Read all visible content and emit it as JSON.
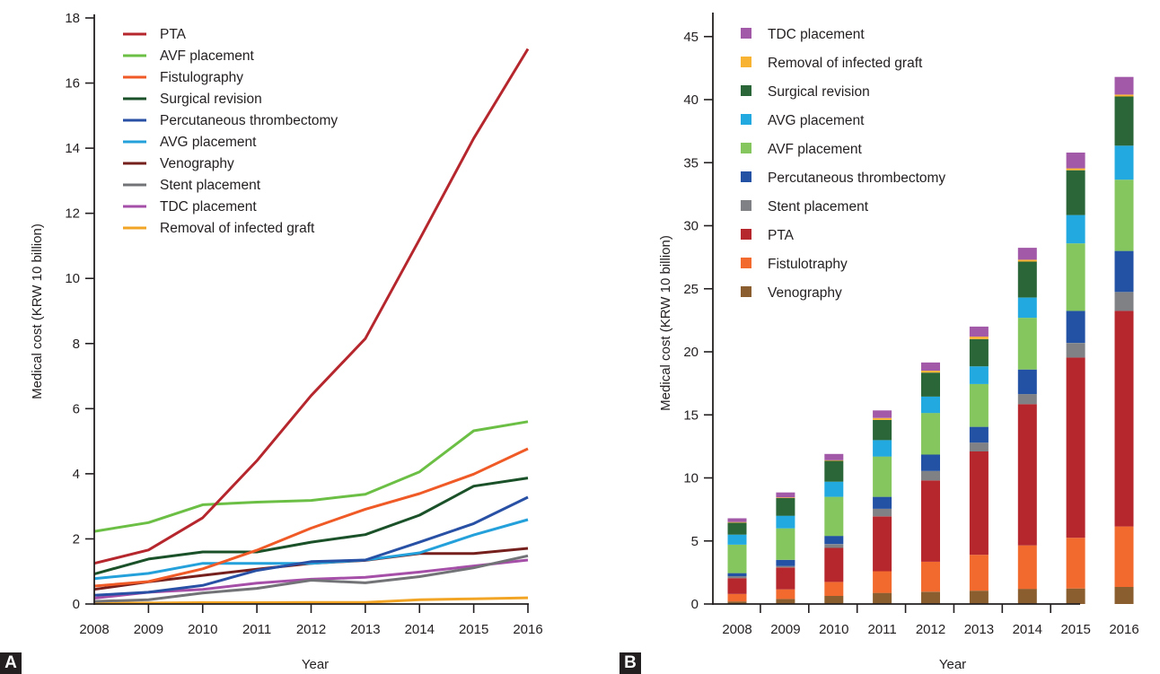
{
  "panels": {
    "a_label": "A",
    "b_label": "B"
  },
  "chart_data": [
    {
      "id": "A",
      "type": "line",
      "title": "",
      "xlabel": "Year",
      "ylabel": "Medical cost (KRW 10 billion)",
      "x": [
        "2008",
        "2009",
        "2010",
        "2011",
        "2012",
        "2013",
        "2014",
        "2015",
        "2016"
      ],
      "ylim": [
        0,
        18
      ],
      "yticks": [
        0,
        2,
        4,
        6,
        8,
        10,
        12,
        14,
        16,
        18
      ],
      "grid": false,
      "legend_position": "top-left",
      "series": [
        {
          "name": "PTA",
          "color": "#b5262d",
          "values": [
            1.25,
            1.66,
            2.65,
            4.4,
            6.4,
            8.15,
            11.2,
            14.3,
            17.05
          ]
        },
        {
          "name": "AVF placement",
          "color": "#6cbf45",
          "values": [
            2.23,
            2.5,
            3.05,
            3.13,
            3.18,
            3.37,
            4.06,
            5.32,
            5.6
          ]
        },
        {
          "name": "Fistulography",
          "color": "#ef5a26",
          "values": [
            0.55,
            0.69,
            1.08,
            1.65,
            2.33,
            2.91,
            3.39,
            3.99,
            4.77
          ]
        },
        {
          "name": "Surgical revision",
          "color": "#1a5128",
          "values": [
            0.92,
            1.38,
            1.6,
            1.6,
            1.9,
            2.13,
            2.73,
            3.62,
            3.87
          ]
        },
        {
          "name": "Percutaneous thrombectomy",
          "color": "#2850a4",
          "values": [
            0.27,
            0.36,
            0.57,
            1.03,
            1.3,
            1.35,
            1.9,
            2.47,
            3.28
          ]
        },
        {
          "name": "AVG placement",
          "color": "#24a0da",
          "values": [
            0.78,
            0.94,
            1.25,
            1.25,
            1.25,
            1.35,
            1.57,
            2.12,
            2.59
          ]
        },
        {
          "name": "Venography",
          "color": "#76201e",
          "values": [
            0.45,
            0.68,
            0.88,
            1.07,
            1.25,
            1.34,
            1.55,
            1.55,
            1.71
          ]
        },
        {
          "name": "Stent placement",
          "color": "#727376",
          "values": [
            0.08,
            0.13,
            0.34,
            0.48,
            0.73,
            0.65,
            0.84,
            1.11,
            1.48
          ]
        },
        {
          "name": "TDC placement",
          "color": "#a64fa8",
          "values": [
            0.18,
            0.36,
            0.45,
            0.64,
            0.76,
            0.82,
            0.98,
            1.17,
            1.35
          ]
        },
        {
          "name": "Removal of infected graft",
          "color": "#f2a525",
          "values": [
            0.02,
            0.03,
            0.04,
            0.04,
            0.05,
            0.05,
            0.13,
            0.16,
            0.19
          ]
        }
      ]
    },
    {
      "id": "B",
      "type": "bar",
      "stacked": true,
      "title": "",
      "xlabel": "Year",
      "ylabel": "Medical cost (KRW 10 billion)",
      "categories": [
        "2008",
        "2009",
        "2010",
        "2011",
        "2012",
        "2013",
        "2014",
        "2015",
        "2016"
      ],
      "ylim": [
        0,
        46
      ],
      "yticks": [
        0,
        5,
        10,
        15,
        20,
        25,
        30,
        35,
        40,
        45
      ],
      "grid": false,
      "legend_position": "top-left",
      "legend_order": [
        "TDC placement",
        "Removal of infected graft",
        "Surgical revision",
        "AVG placement",
        "AVF placement",
        "Percutaneous thrombectomy",
        "Stent placement",
        "PTA",
        "Fistulotraphy",
        "Venography"
      ],
      "series": [
        {
          "name": "Venography",
          "color": "#8a5e2e",
          "values": [
            0.2,
            0.4,
            0.64,
            0.88,
            0.97,
            1.05,
            1.2,
            1.23,
            1.35
          ]
        },
        {
          "name": "Fistulotraphy",
          "color": "#f26a2e",
          "values": [
            0.6,
            0.76,
            1.11,
            1.72,
            2.38,
            2.85,
            3.45,
            4.02,
            4.8
          ]
        },
        {
          "name": "PTA",
          "color": "#b5262d",
          "values": [
            1.25,
            1.74,
            2.7,
            4.35,
            6.45,
            8.2,
            11.2,
            14.3,
            17.1
          ]
        },
        {
          "name": "Stent placement",
          "color": "#808184",
          "values": [
            0.15,
            0.11,
            0.3,
            0.6,
            0.75,
            0.7,
            0.8,
            1.15,
            1.5
          ]
        },
        {
          "name": "Percutaneous thrombectomy",
          "color": "#2351a3",
          "values": [
            0.25,
            0.49,
            0.65,
            0.95,
            1.3,
            1.25,
            1.95,
            2.55,
            3.25
          ]
        },
        {
          "name": "AVF placement",
          "color": "#86c65e",
          "values": [
            2.25,
            2.5,
            3.1,
            3.2,
            3.3,
            3.4,
            4.1,
            5.35,
            5.65
          ]
        },
        {
          "name": "AVG placement",
          "color": "#22a9df",
          "values": [
            0.8,
            1.0,
            1.2,
            1.3,
            1.3,
            1.4,
            1.6,
            2.25,
            2.7
          ]
        },
        {
          "name": "Surgical revision",
          "color": "#2a6638",
          "values": [
            0.95,
            1.4,
            1.65,
            1.6,
            1.9,
            2.15,
            2.85,
            3.55,
            3.9
          ]
        },
        {
          "name": "Removal of infected graft",
          "color": "#f8b333",
          "values": [
            0.05,
            0.05,
            0.05,
            0.15,
            0.15,
            0.2,
            0.15,
            0.15,
            0.15
          ]
        },
        {
          "name": "TDC placement",
          "color": "#a25aa8",
          "values": [
            0.3,
            0.4,
            0.5,
            0.6,
            0.65,
            0.8,
            0.95,
            1.25,
            1.4
          ]
        }
      ]
    }
  ]
}
